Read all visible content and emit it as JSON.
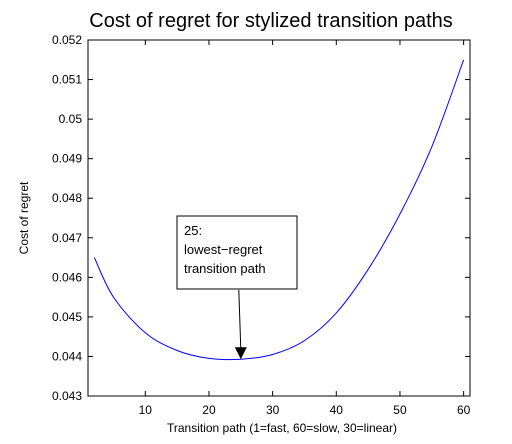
{
  "chart_data": {
    "type": "line",
    "title": "Cost of regret for stylized transition paths",
    "xlabel": "Transition path (1=fast, 60=slow, 30=linear)",
    "ylabel": "Cost of regret",
    "xlim": [
      1,
      61
    ],
    "ylim": [
      0.043,
      0.052
    ],
    "xticks": [
      10,
      20,
      30,
      40,
      50,
      60
    ],
    "yticks": [
      0.043,
      0.044,
      0.045,
      0.046,
      0.047,
      0.048,
      0.049,
      0.05,
      0.051,
      0.052
    ],
    "grid": false,
    "series": [
      {
        "color": "#0000ff",
        "x": [
          2,
          5,
          10,
          15,
          20,
          25,
          30,
          35,
          40,
          45,
          50,
          55,
          60
        ],
        "y": [
          0.0465,
          0.0455,
          0.0446,
          0.04415,
          0.04395,
          0.04393,
          0.04405,
          0.0444,
          0.0451,
          0.0462,
          0.0476,
          0.0493,
          0.0515
        ]
      }
    ],
    "annotation": {
      "lines": [
        "25:",
        "lowest−regret",
        "transition path"
      ],
      "target_x": 25,
      "target_y": 0.04393
    }
  }
}
